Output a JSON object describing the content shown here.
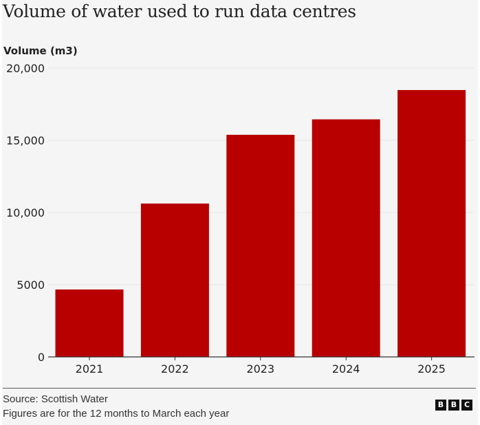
{
  "footer": {
    "source": "Source: Scottish Water",
    "note": "Figures are for the 12 months to March each year",
    "logo_letters": [
      "B",
      "B",
      "C"
    ]
  },
  "colors": {
    "bar": "#b80000",
    "background": "#f5f5f5",
    "text": "#222222",
    "gridline": "#e6e6e6",
    "axis": "#333333"
  },
  "chart_data": {
    "type": "bar",
    "title": "Volume of water used to run data centres",
    "xlabel": "",
    "ylabel": "Volume (m3)",
    "categories": [
      "2021",
      "2022",
      "2023",
      "2024",
      "2025"
    ],
    "values": [
      4670,
      10620,
      15380,
      16450,
      18480
    ],
    "ylim": [
      0,
      20000
    ],
    "yticks": [
      0,
      5000,
      10000,
      15000,
      20000
    ],
    "ytick_labels": [
      "0",
      "5000",
      "10,000",
      "15,000",
      "20,000"
    ],
    "grid": true,
    "legend": "none"
  }
}
